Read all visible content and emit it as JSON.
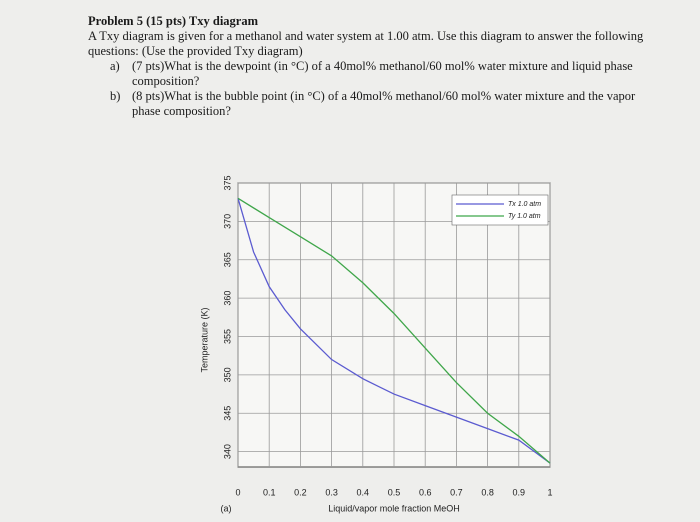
{
  "problem": {
    "title": "Problem 5 (15 pts) Txy diagram",
    "intro": "A Txy diagram is given for a methanol and water system at 1.00 atm. Use this diagram to answer the following questions: (Use the provided Txy diagram)",
    "parts": [
      {
        "label": "a)",
        "text": "(7 pts)What is the dewpoint (in °C) of a 40mol% methanol/60 mol% water mixture and liquid phase composition?"
      },
      {
        "label": "b)",
        "text": "(8 pts)What is the bubble point (in °C) of a 40mol% methanol/60 mol% water mixture and the vapor phase composition?"
      }
    ]
  },
  "chart_data": {
    "type": "line",
    "x_label": "Liquid/vapor mole fraction MeOH",
    "y_label": "Temperature (K)",
    "panel_label": "(a)",
    "xlim": [
      0,
      1
    ],
    "xticks": [
      0,
      0.1,
      0.2,
      0.3,
      0.4,
      0.5,
      0.6,
      0.7,
      0.8,
      0.9,
      1
    ],
    "ylim": [
      338,
      375
    ],
    "yticks": [
      340,
      345,
      350,
      355,
      360,
      365,
      370,
      375
    ],
    "grid": true,
    "legend": "upper right",
    "series": [
      {
        "name": "Tx 1.0 atm",
        "color": "#5b5bd0",
        "x": [
          0,
          0.05,
          0.1,
          0.15,
          0.2,
          0.3,
          0.4,
          0.5,
          0.6,
          0.7,
          0.8,
          0.9,
          1
        ],
        "values": [
          373,
          366,
          361.5,
          358.5,
          356,
          352,
          349.5,
          347.5,
          346,
          344.5,
          343,
          341.5,
          338.5
        ]
      },
      {
        "name": "Ty 1.0 atm",
        "color": "#3fa64a",
        "x": [
          0,
          0.1,
          0.2,
          0.3,
          0.4,
          0.5,
          0.6,
          0.7,
          0.8,
          0.9,
          1
        ],
        "values": [
          373,
          370.5,
          368,
          365.5,
          362,
          358,
          353.5,
          349,
          345,
          342,
          338.5
        ]
      }
    ]
  }
}
